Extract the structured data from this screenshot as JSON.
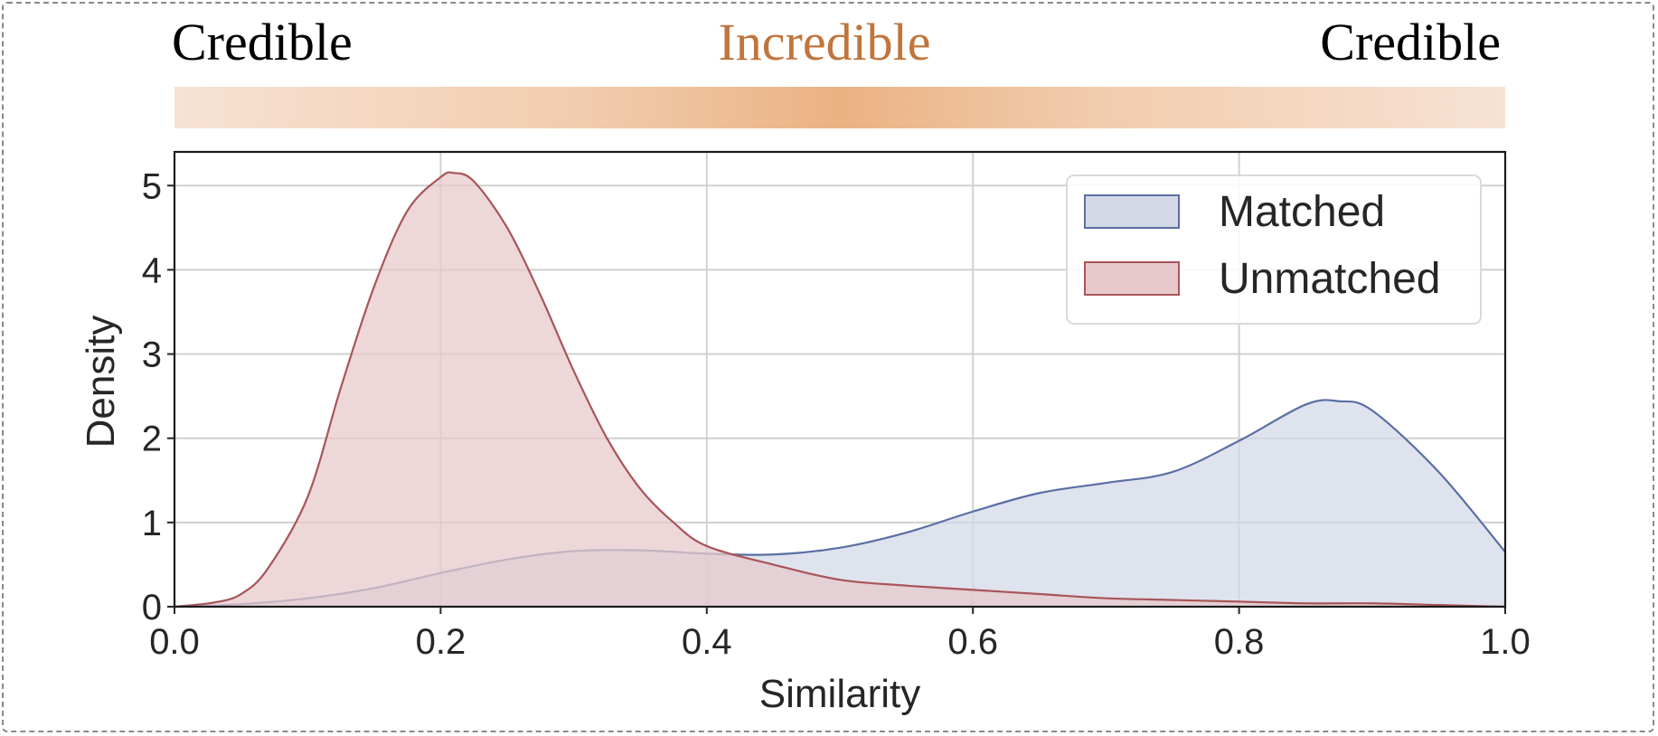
{
  "header": {
    "left_label": "Credible",
    "center_label": "Incredible",
    "right_label": "Credible",
    "center_color": "#c0753c",
    "gradient_peak_color": "#ebb283",
    "gradient_edge_color": "#f7e2d3"
  },
  "chart_data": {
    "type": "area",
    "xlabel": "Similarity",
    "ylabel": "Density",
    "xlim": [
      0.0,
      1.0
    ],
    "ylim": [
      0,
      5.4
    ],
    "x_ticks": [
      "0.0",
      "0.2",
      "0.4",
      "0.6",
      "0.8",
      "1.0"
    ],
    "y_ticks": [
      "0",
      "1",
      "2",
      "3",
      "4",
      "5"
    ],
    "grid": true,
    "legend_position": "top-right",
    "series": [
      {
        "name": "Matched",
        "color": "#5a6fa3",
        "fill": "#d4d9e7",
        "x": [
          0.0,
          0.05,
          0.1,
          0.15,
          0.2,
          0.25,
          0.3,
          0.35,
          0.4,
          0.45,
          0.5,
          0.55,
          0.6,
          0.65,
          0.7,
          0.75,
          0.8,
          0.85,
          0.875,
          0.9,
          0.95,
          1.0
        ],
        "values": [
          0.0,
          0.03,
          0.1,
          0.22,
          0.4,
          0.56,
          0.66,
          0.67,
          0.63,
          0.62,
          0.7,
          0.88,
          1.13,
          1.35,
          1.47,
          1.6,
          1.97,
          2.4,
          2.44,
          2.33,
          1.6,
          0.65
        ]
      },
      {
        "name": "Unmatched",
        "color": "#a85559",
        "fill": "#e7c9cc",
        "x": [
          0.0,
          0.03,
          0.05,
          0.07,
          0.1,
          0.125,
          0.15,
          0.175,
          0.2,
          0.21,
          0.225,
          0.25,
          0.275,
          0.3,
          0.325,
          0.35,
          0.375,
          0.4,
          0.45,
          0.5,
          0.55,
          0.6,
          0.65,
          0.7,
          0.75,
          0.8,
          0.85,
          0.9,
          0.95,
          1.0
        ],
        "values": [
          0.0,
          0.05,
          0.15,
          0.45,
          1.3,
          2.6,
          3.8,
          4.7,
          5.1,
          5.15,
          5.05,
          4.5,
          3.7,
          2.8,
          2.0,
          1.4,
          1.0,
          0.72,
          0.5,
          0.32,
          0.25,
          0.2,
          0.15,
          0.1,
          0.08,
          0.06,
          0.04,
          0.04,
          0.02,
          0.0
        ]
      }
    ]
  }
}
